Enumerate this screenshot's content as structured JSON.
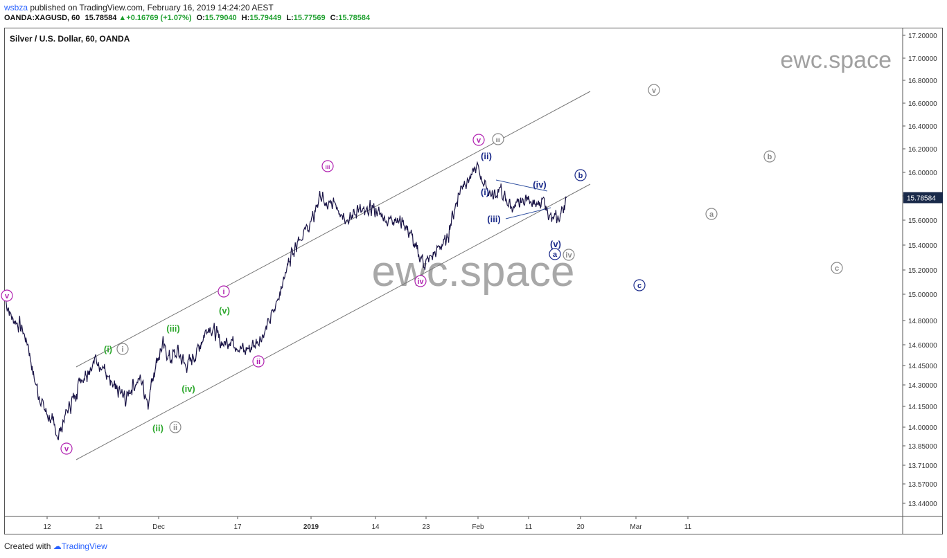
{
  "header": {
    "user": "wsbza",
    "published": " published on TradingView.com, February 16, 2019 14:24:20 AEST",
    "symbol": "OANDA:XAGUSD, 60",
    "last": "15.78584",
    "change": "+0.16769 (+1.07%)",
    "open_label": "O:",
    "open": "15.79040",
    "high_label": "H:",
    "high": "15.79449",
    "low_label": "L:",
    "low": "15.77569",
    "close_label": "C:",
    "close": "15.78584"
  },
  "chart_title": "Silver / U.S. Dollar, 60, OANDA",
  "watermark": "ewc.space",
  "footer": {
    "created": "Created with",
    "brand": "TradingView"
  },
  "colors": {
    "candles": "#1a1446",
    "magenta": "#b020b0",
    "green": "#2ea82e",
    "navy": "#1a2a8a",
    "gray": "#888888",
    "price_tag": "#1a2a4a"
  },
  "chart_data": {
    "type": "line",
    "title": "Silver / U.S. Dollar, 60, OANDA",
    "xlabel": "",
    "ylabel": "",
    "x_ticks": [
      "12",
      "21",
      "Dec",
      "17",
      "2019",
      "14",
      "23",
      "Feb",
      "11",
      "20",
      "Mar",
      "11"
    ],
    "y_ticks": [
      "17.20000",
      "17.00000",
      "16.80000",
      "16.60000",
      "16.40000",
      "16.20000",
      "16.00000",
      "15.80000",
      "15.60000",
      "15.40000",
      "15.20000",
      "15.00000",
      "14.80000",
      "14.60000",
      "14.45000",
      "14.30000",
      "14.15000",
      "14.00000",
      "13.85000",
      "13.71000",
      "13.57000",
      "13.44000"
    ],
    "last_price": "15.78584",
    "ylim": [
      13.4,
      17.2
    ],
    "series": [
      {
        "values": [
          [
            "Nov 5",
            14.95
          ],
          [
            "Nov 6",
            14.8
          ],
          [
            "Nov 7",
            14.75
          ],
          [
            "Nov 8",
            14.6
          ],
          [
            "Nov 9",
            14.3
          ],
          [
            "Nov 12",
            14.15
          ],
          [
            "Nov 13",
            14.05
          ],
          [
            "Nov 14",
            13.93
          ],
          [
            "Nov 15",
            14.1
          ],
          [
            "Nov 16",
            14.2
          ],
          [
            "Nov 19",
            14.35
          ],
          [
            "Nov 20",
            14.4
          ],
          [
            "Nov 21",
            14.5
          ],
          [
            "Nov 22",
            14.45
          ],
          [
            "Nov 23",
            14.3
          ],
          [
            "Nov 26",
            14.25
          ],
          [
            "Nov 27",
            14.2
          ],
          [
            "Nov 28",
            14.3
          ],
          [
            "Nov 29",
            14.35
          ],
          [
            "Nov 30",
            14.18
          ],
          [
            "Dec 3",
            14.45
          ],
          [
            "Dec 4",
            14.6
          ],
          [
            "Dec 5",
            14.5
          ],
          [
            "Dec 6",
            14.55
          ],
          [
            "Dec 7",
            14.45
          ],
          [
            "Dec 10",
            14.5
          ],
          [
            "Dec 11",
            14.6
          ],
          [
            "Dec 12",
            14.75
          ],
          [
            "Dec 13",
            14.7
          ],
          [
            "Dec 14",
            14.6
          ],
          [
            "Dec 17",
            14.65
          ],
          [
            "Dec 18",
            14.6
          ],
          [
            "Dec 19",
            14.55
          ],
          [
            "Dec 20",
            14.6
          ],
          [
            "Dec 21",
            14.65
          ],
          [
            "Dec 24",
            14.75
          ],
          [
            "Dec 25",
            14.9
          ],
          [
            "Dec 26",
            15.1
          ],
          [
            "Dec 27",
            15.3
          ],
          [
            "Dec 28",
            15.45
          ],
          [
            "Dec 31",
            15.5
          ],
          [
            "Jan 1",
            15.6
          ],
          [
            "Jan 2",
            15.8
          ],
          [
            "Jan 3",
            15.7
          ],
          [
            "Jan 4",
            15.75
          ],
          [
            "Jan 7",
            15.65
          ],
          [
            "Jan 8",
            15.6
          ],
          [
            "Jan 9",
            15.7
          ],
          [
            "Jan 10",
            15.65
          ],
          [
            "Jan 11",
            15.7
          ],
          [
            "Jan 14",
            15.65
          ],
          [
            "Jan 15",
            15.6
          ],
          [
            "Jan 16",
            15.62
          ],
          [
            "Jan 17",
            15.58
          ],
          [
            "Jan 18",
            15.5
          ],
          [
            "Jan 21",
            15.35
          ],
          [
            "Jan 22",
            15.25
          ],
          [
            "Jan 23",
            15.3
          ],
          [
            "Jan 24",
            15.38
          ],
          [
            "Jan 25",
            15.45
          ],
          [
            "Jan 28",
            15.7
          ],
          [
            "Jan 29",
            15.9
          ],
          [
            "Jan 30",
            15.95
          ],
          [
            "Jan 31",
            16.05
          ],
          [
            "Feb 1",
            15.9
          ],
          [
            "Feb 4",
            15.8
          ],
          [
            "Feb 5",
            15.85
          ],
          [
            "Feb 6",
            15.75
          ],
          [
            "Feb 7",
            15.7
          ],
          [
            "Feb 8",
            15.75
          ],
          [
            "Feb 11",
            15.8
          ],
          [
            "Feb 12",
            15.7
          ],
          [
            "Feb 13",
            15.75
          ],
          [
            "Feb 14",
            15.6
          ],
          [
            "Feb 15",
            15.62
          ],
          [
            "Feb 16",
            15.78584
          ]
        ]
      }
    ]
  },
  "waves": [
    {
      "label": "v",
      "circled": true,
      "color": "magenta"
    },
    {
      "label": "v",
      "circled": true,
      "color": "magenta"
    },
    {
      "label": "(i)",
      "circled": false,
      "color": "green"
    },
    {
      "label": "i",
      "circled": true,
      "color": "gray"
    },
    {
      "label": "(ii)",
      "circled": false,
      "color": "green"
    },
    {
      "label": "ii",
      "circled": true,
      "color": "gray"
    },
    {
      "label": "(iii)",
      "circled": false,
      "color": "green"
    },
    {
      "label": "(iv)",
      "circled": false,
      "color": "green"
    },
    {
      "label": "(v)",
      "circled": false,
      "color": "green"
    },
    {
      "label": "i",
      "circled": true,
      "color": "magenta"
    },
    {
      "label": "ii",
      "circled": true,
      "color": "magenta"
    },
    {
      "label": "iii",
      "circled": true,
      "color": "magenta"
    },
    {
      "label": "iv",
      "circled": true,
      "color": "magenta"
    },
    {
      "label": "v",
      "circled": true,
      "color": "magenta"
    },
    {
      "label": "iii",
      "circled": true,
      "color": "gray"
    },
    {
      "label": "(ii)",
      "circled": false,
      "color": "navy"
    },
    {
      "label": "(i)",
      "circled": false,
      "color": "navy"
    },
    {
      "label": "(iii)",
      "circled": false,
      "color": "navy"
    },
    {
      "label": "(iv)",
      "circled": false,
      "color": "navy"
    },
    {
      "label": "(v)",
      "circled": false,
      "color": "navy"
    },
    {
      "label": "a",
      "circled": true,
      "color": "navy"
    },
    {
      "label": "iv",
      "circled": true,
      "color": "gray"
    },
    {
      "label": "b",
      "circled": true,
      "color": "navy"
    },
    {
      "label": "c",
      "circled": true,
      "color": "navy"
    },
    {
      "label": "v",
      "circled": true,
      "color": "gray"
    },
    {
      "label": "b",
      "circled": true,
      "color": "gray"
    },
    {
      "label": "a",
      "circled": true,
      "color": "gray"
    },
    {
      "label": "c",
      "circled": true,
      "color": "gray"
    }
  ]
}
